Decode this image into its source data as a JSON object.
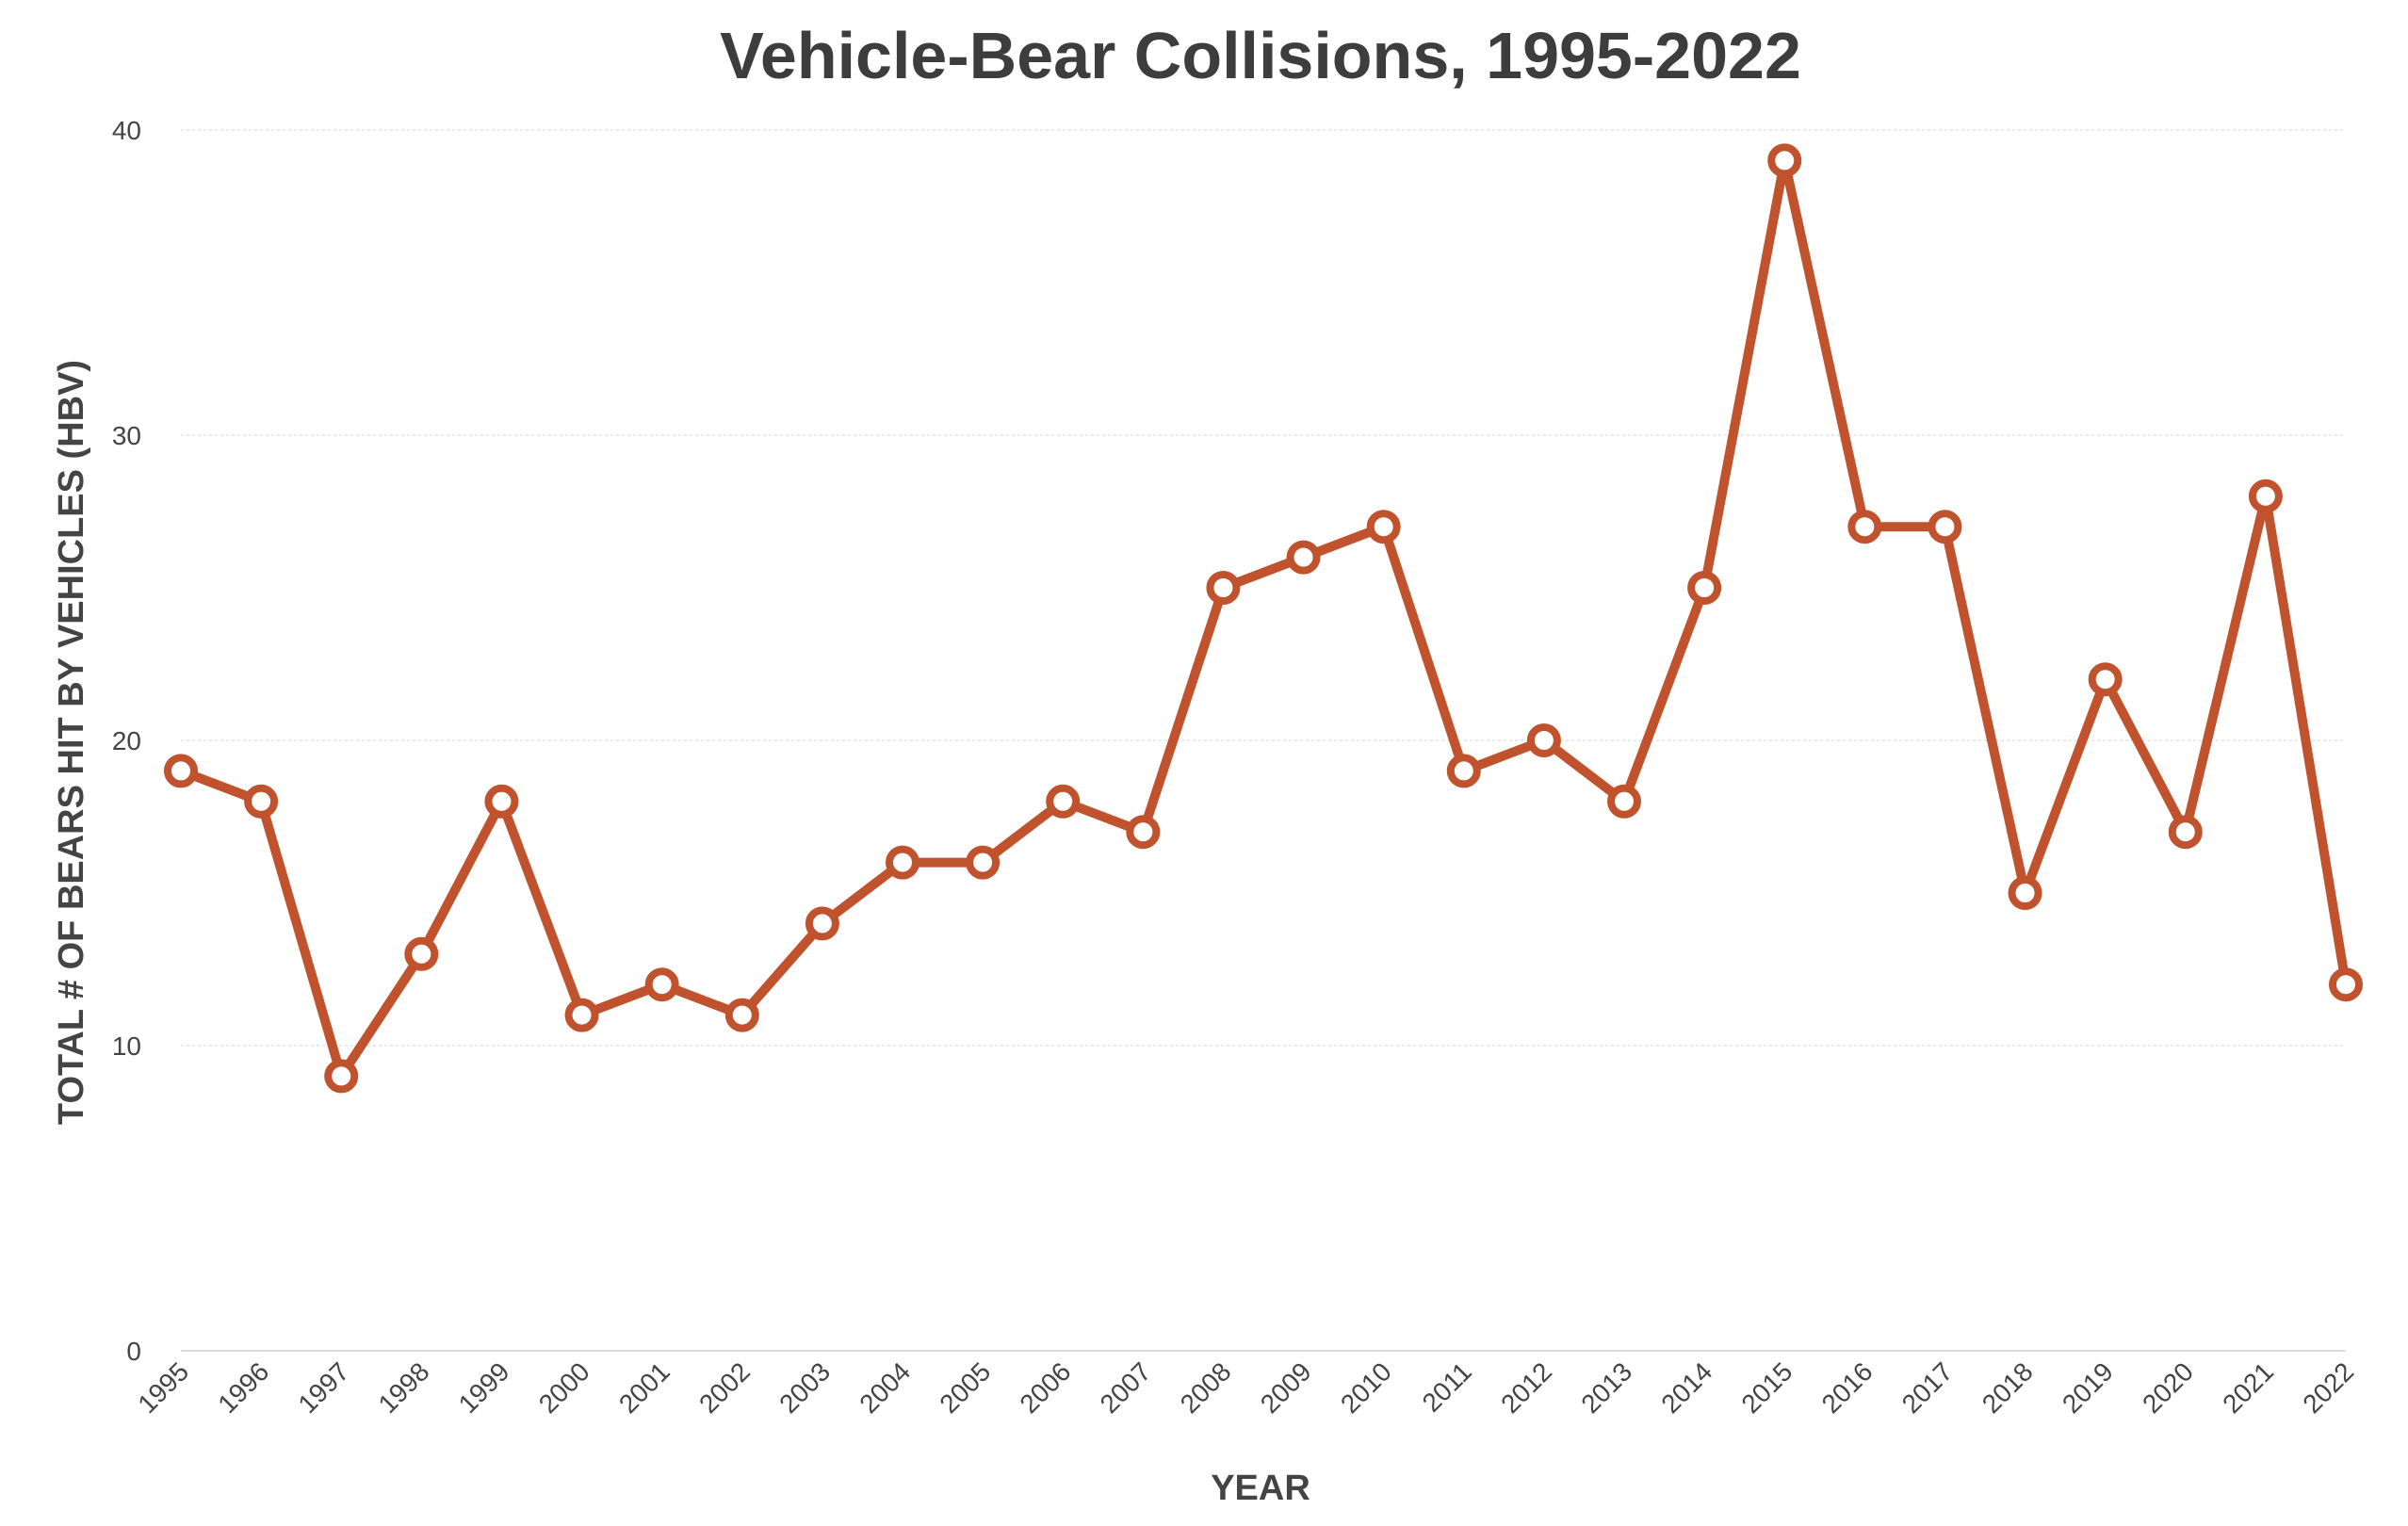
{
  "chart_data": {
    "type": "line",
    "title": "Vehicle-Bear Collisions, 1995-2022",
    "xlabel": "YEAR",
    "ylabel": "TOTAL # OF BEARS HIT BY VEHICLES  (HBV)",
    "ylim": [
      0,
      40
    ],
    "yticks": [
      "0",
      "10",
      "20",
      "30",
      "40"
    ],
    "grid": true,
    "legend": "none",
    "color": "#c0532e",
    "categories": [
      "1995",
      "1996",
      "1997",
      "1998",
      "1999",
      "2000",
      "2001",
      "2002",
      "2003",
      "2004",
      "2005",
      "2006",
      "2007",
      "2008",
      "2009",
      "2010",
      "2011",
      "2012",
      "2013",
      "2014",
      "2015",
      "2016",
      "2017",
      "2018",
      "2019",
      "2020",
      "2021",
      "2022"
    ],
    "series": [
      {
        "values": [
          19,
          18,
          9,
          13,
          18,
          11,
          12,
          11,
          14,
          16,
          16,
          18,
          17,
          25,
          26,
          27,
          19,
          20,
          18,
          25,
          39,
          27,
          27,
          15,
          22,
          17,
          28,
          12
        ]
      }
    ]
  }
}
